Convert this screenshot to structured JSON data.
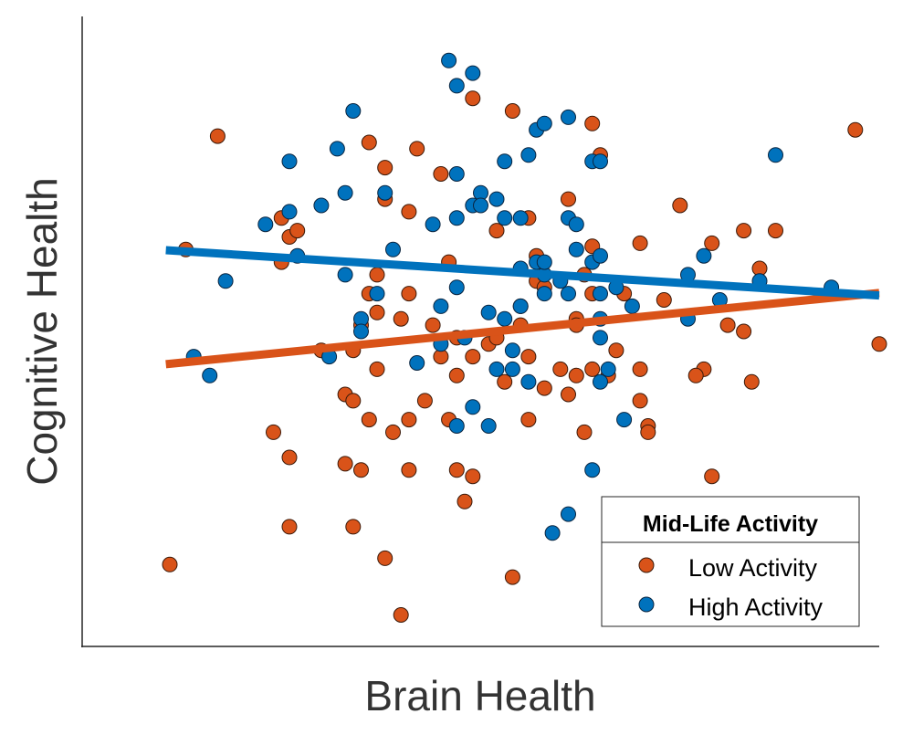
{
  "chart_data": {
    "type": "scatter",
    "title": "",
    "xlabel": "Brain Health",
    "ylabel": "Cognitive Health",
    "xlim": [
      0,
      100
    ],
    "ylim": [
      0,
      100
    ],
    "grid": false,
    "ticks_shown": false,
    "legend": {
      "title": "Mid-Life Activity",
      "placement": "bottom-right"
    },
    "series": [
      {
        "name": "Low Activity",
        "color": "#D95319",
        "points": [
          [
            11,
            13
          ],
          [
            13,
            63
          ],
          [
            17,
            81
          ],
          [
            24,
            34
          ],
          [
            25,
            68
          ],
          [
            25,
            61
          ],
          [
            26,
            65
          ],
          [
            27,
            66
          ],
          [
            26,
            19
          ],
          [
            26,
            30
          ],
          [
            30,
            47
          ],
          [
            33,
            40
          ],
          [
            33,
            29
          ],
          [
            34,
            19
          ],
          [
            34,
            39
          ],
          [
            35,
            28
          ],
          [
            34,
            47
          ],
          [
            35,
            51
          ],
          [
            36,
            80
          ],
          [
            37,
            59
          ],
          [
            36,
            56
          ],
          [
            37,
            53
          ],
          [
            37,
            44
          ],
          [
            36,
            36
          ],
          [
            38,
            14
          ],
          [
            38,
            76
          ],
          [
            38,
            71
          ],
          [
            39,
            34
          ],
          [
            40,
            5
          ],
          [
            40,
            52
          ],
          [
            41,
            36
          ],
          [
            41,
            28
          ],
          [
            41,
            69
          ],
          [
            41,
            56
          ],
          [
            42,
            79
          ],
          [
            43,
            39
          ],
          [
            44,
            51
          ],
          [
            45,
            75
          ],
          [
            45,
            46
          ],
          [
            46,
            36
          ],
          [
            46,
            61
          ],
          [
            47,
            49
          ],
          [
            47,
            28
          ],
          [
            47,
            43
          ],
          [
            48,
            23
          ],
          [
            49,
            27
          ],
          [
            49,
            87
          ],
          [
            49,
            46
          ],
          [
            51,
            48
          ],
          [
            52,
            66
          ],
          [
            52,
            49
          ],
          [
            53,
            42
          ],
          [
            54,
            85
          ],
          [
            54,
            11
          ],
          [
            55,
            51
          ],
          [
            55,
            54
          ],
          [
            56,
            68
          ],
          [
            56,
            36
          ],
          [
            56,
            46
          ],
          [
            57,
            62
          ],
          [
            57,
            58
          ],
          [
            58,
            41
          ],
          [
            58,
            57
          ],
          [
            60,
            44
          ],
          [
            61,
            71
          ],
          [
            61,
            40
          ],
          [
            62,
            52
          ],
          [
            62,
            43
          ],
          [
            62,
            51
          ],
          [
            63,
            59
          ],
          [
            63,
            34
          ],
          [
            64,
            83
          ],
          [
            64,
            44
          ],
          [
            65,
            78
          ],
          [
            64,
            56
          ],
          [
            64,
            63.5
          ],
          [
            66,
            43
          ],
          [
            67,
            47
          ],
          [
            68,
            56
          ],
          [
            70,
            44
          ],
          [
            70,
            39
          ],
          [
            70,
            64
          ],
          [
            71,
            35
          ],
          [
            71,
            34
          ],
          [
            73,
            55
          ],
          [
            75,
            70
          ],
          [
            79,
            64
          ],
          [
            78,
            44
          ],
          [
            77,
            43
          ],
          [
            79,
            27
          ],
          [
            81,
            51
          ],
          [
            83,
            66
          ],
          [
            83,
            50
          ],
          [
            84,
            42
          ],
          [
            85,
            60
          ],
          [
            87,
            66
          ],
          [
            97,
            82
          ],
          [
            100,
            48
          ]
        ],
        "trend": [
          [
            10.5,
            44.8
          ],
          [
            100,
            56.1
          ]
        ]
      },
      {
        "name": "High Activity",
        "color": "#0072BD",
        "points": [
          [
            14,
            46
          ],
          [
            16,
            43
          ],
          [
            18,
            58
          ],
          [
            23,
            67
          ],
          [
            26,
            77
          ],
          [
            26,
            69
          ],
          [
            27,
            62
          ],
          [
            30,
            70
          ],
          [
            31,
            46
          ],
          [
            32,
            79
          ],
          [
            33,
            72
          ],
          [
            33,
            59
          ],
          [
            34,
            85
          ],
          [
            35,
            52
          ],
          [
            35,
            50
          ],
          [
            37,
            56
          ],
          [
            38,
            72
          ],
          [
            39,
            63
          ],
          [
            42,
            45
          ],
          [
            44,
            67
          ],
          [
            45,
            48
          ],
          [
            45,
            54
          ],
          [
            46,
            93
          ],
          [
            47,
            89
          ],
          [
            47,
            35
          ],
          [
            47,
            75
          ],
          [
            47,
            68
          ],
          [
            47,
            57
          ],
          [
            48,
            49
          ],
          [
            49,
            91
          ],
          [
            49,
            70
          ],
          [
            49,
            38
          ],
          [
            50,
            72
          ],
          [
            50,
            70
          ],
          [
            51,
            53
          ],
          [
            51,
            35
          ],
          [
            52,
            71
          ],
          [
            52,
            44
          ],
          [
            53,
            77
          ],
          [
            53,
            68
          ],
          [
            53,
            52
          ],
          [
            54,
            44
          ],
          [
            54,
            47
          ],
          [
            55,
            68
          ],
          [
            55,
            60
          ],
          [
            55,
            54
          ],
          [
            56,
            78
          ],
          [
            56,
            42
          ],
          [
            57,
            82
          ],
          [
            57,
            61
          ],
          [
            58,
            56
          ],
          [
            58,
            59
          ],
          [
            58,
            83
          ],
          [
            58,
            61
          ],
          [
            59,
            18
          ],
          [
            60,
            58
          ],
          [
            61,
            21
          ],
          [
            61,
            68
          ],
          [
            61,
            56
          ],
          [
            61,
            84
          ],
          [
            62,
            67
          ],
          [
            62,
            63
          ],
          [
            64,
            28
          ],
          [
            64,
            61
          ],
          [
            64,
            77
          ],
          [
            65,
            77
          ],
          [
            65,
            49
          ],
          [
            65,
            42
          ],
          [
            65,
            56
          ],
          [
            65,
            52
          ],
          [
            66,
            44
          ],
          [
            65,
            62
          ],
          [
            67,
            57
          ],
          [
            68,
            36
          ],
          [
            69,
            54
          ],
          [
            76,
            52
          ],
          [
            76,
            59
          ],
          [
            78,
            62
          ],
          [
            80,
            55
          ],
          [
            85,
            58
          ],
          [
            87,
            78
          ],
          [
            94,
            57
          ]
        ],
        "trend": [
          [
            10.5,
            62.9
          ],
          [
            100,
            55.7
          ]
        ]
      }
    ]
  }
}
